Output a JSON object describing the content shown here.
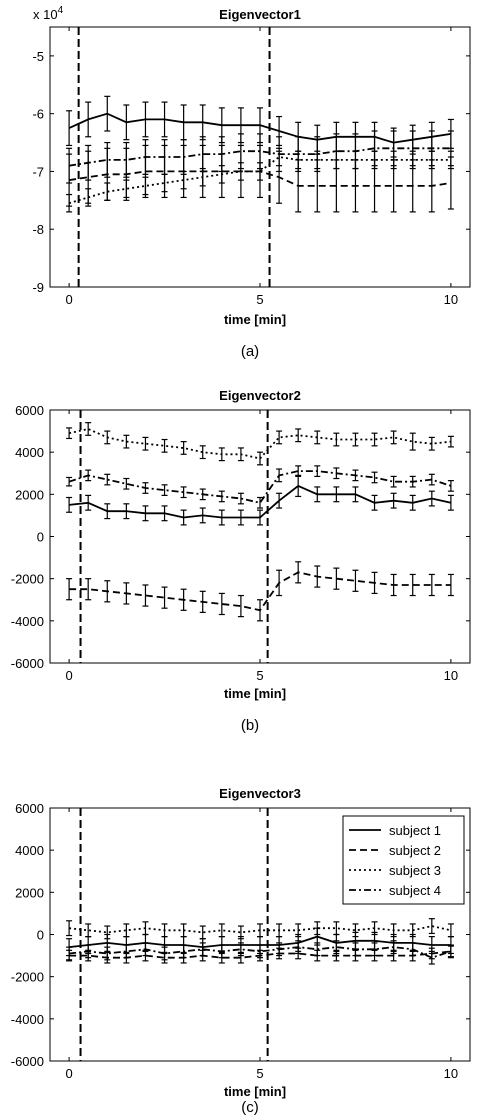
{
  "chart_data": [
    {
      "type": "line",
      "title": "Eigenvector1",
      "xlabel": "time [min]",
      "caption": "(a)",
      "exponent_label": "x 10",
      "exponent_power": "4",
      "xlim": [
        -0.5,
        10.5
      ],
      "ylim": [
        -9,
        -4.5
      ],
      "xticks": [
        0,
        5,
        10
      ],
      "yticks": [
        -9,
        -8,
        -7,
        -6,
        -5
      ],
      "vlines": [
        0.25,
        5.25
      ],
      "x": [
        0,
        0.5,
        1,
        1.5,
        2,
        2.5,
        3,
        3.5,
        4,
        4.5,
        5,
        5.5,
        6,
        6.5,
        7,
        7.5,
        8,
        8.5,
        9,
        9.5,
        10
      ],
      "series": [
        {
          "name": "subject 1",
          "style": "solid",
          "values": [
            -6.25,
            -6.1,
            -6.0,
            -6.15,
            -6.1,
            -6.1,
            -6.15,
            -6.15,
            -6.2,
            -6.2,
            -6.2,
            -6.3,
            -6.4,
            -6.45,
            -6.4,
            -6.4,
            -6.4,
            -6.5,
            -6.45,
            -6.4,
            -6.35
          ],
          "err": [
            0.3,
            0.3,
            0.3,
            0.3,
            0.3,
            0.3,
            0.3,
            0.3,
            0.3,
            0.3,
            0.3,
            0.25,
            0.25,
            0.25,
            0.25,
            0.25,
            0.25,
            0.25,
            0.25,
            0.25,
            0.25
          ]
        },
        {
          "name": "subject 2",
          "style": "dashed",
          "values": [
            -7.15,
            -7.1,
            -7.05,
            -7.05,
            -7.0,
            -7.0,
            -7.0,
            -7.0,
            -7.0,
            -7.0,
            -7.0,
            -7.1,
            -7.25,
            -7.25,
            -7.25,
            -7.25,
            -7.25,
            -7.25,
            -7.25,
            -7.25,
            -7.2
          ],
          "err": [
            0.45,
            0.45,
            0.45,
            0.45,
            0.45,
            0.45,
            0.45,
            0.45,
            0.45,
            0.45,
            0.45,
            0.45,
            0.45,
            0.45,
            0.45,
            0.45,
            0.45,
            0.45,
            0.45,
            0.45,
            0.45
          ]
        },
        {
          "name": "subject 3",
          "style": "dotted",
          "values": [
            -7.55,
            -7.45,
            -7.35,
            -7.3,
            -7.25,
            -7.2,
            -7.15,
            -7.1,
            -7.05,
            -7.0,
            -7.0,
            -6.75,
            -6.8,
            -6.8,
            -6.8,
            -6.8,
            -6.8,
            -6.8,
            -6.8,
            -6.8,
            -6.8
          ],
          "err": [
            0.15,
            0.15,
            0.15,
            0.15,
            0.15,
            0.15,
            0.15,
            0.15,
            0.15,
            0.15,
            0.15,
            0.15,
            0.15,
            0.15,
            0.15,
            0.15,
            0.15,
            0.15,
            0.15,
            0.15,
            0.15
          ]
        },
        {
          "name": "subject 4",
          "style": "dashdot",
          "values": [
            -6.9,
            -6.85,
            -6.8,
            -6.8,
            -6.75,
            -6.75,
            -6.75,
            -6.7,
            -6.7,
            -6.65,
            -6.65,
            -6.7,
            -6.7,
            -6.7,
            -6.65,
            -6.65,
            -6.6,
            -6.6,
            -6.6,
            -6.6,
            -6.6
          ],
          "err": [
            0.3,
            0.3,
            0.3,
            0.3,
            0.3,
            0.3,
            0.3,
            0.3,
            0.3,
            0.3,
            0.3,
            0.3,
            0.3,
            0.3,
            0.3,
            0.3,
            0.3,
            0.3,
            0.3,
            0.3,
            0.3
          ]
        }
      ]
    },
    {
      "type": "line",
      "title": "Eigenvector2",
      "xlabel": "time [min]",
      "caption": "(b)",
      "xlim": [
        -0.5,
        10.5
      ],
      "ylim": [
        -6000,
        6000
      ],
      "xticks": [
        0,
        5,
        10
      ],
      "yticks": [
        -6000,
        -4000,
        -2000,
        0,
        2000,
        4000,
        6000
      ],
      "vlines": [
        0.3,
        5.2
      ],
      "x": [
        0,
        0.5,
        1,
        1.5,
        2,
        2.5,
        3,
        3.5,
        4,
        4.5,
        5,
        5.5,
        6,
        6.5,
        7,
        7.5,
        8,
        8.5,
        9,
        9.5,
        10
      ],
      "series": [
        {
          "name": "subject 1",
          "style": "solid",
          "values": [
            1500,
            1600,
            1200,
            1200,
            1100,
            1100,
            900,
            1000,
            900,
            900,
            900,
            1700,
            2400,
            2000,
            2000,
            2000,
            1600,
            1700,
            1600,
            1800,
            1600
          ],
          "err": [
            350,
            350,
            350,
            350,
            350,
            350,
            350,
            350,
            350,
            350,
            350,
            350,
            500,
            350,
            350,
            350,
            350,
            350,
            350,
            350,
            350
          ]
        },
        {
          "name": "subject 2",
          "style": "dashed",
          "values": [
            -2500,
            -2500,
            -2600,
            -2700,
            -2800,
            -2900,
            -3000,
            -3100,
            -3200,
            -3300,
            -3500,
            -2200,
            -1700,
            -1900,
            -2000,
            -2100,
            -2200,
            -2300,
            -2300,
            -2300,
            -2300
          ],
          "err": [
            500,
            500,
            500,
            500,
            500,
            500,
            500,
            500,
            500,
            500,
            500,
            600,
            500,
            500,
            500,
            500,
            500,
            500,
            500,
            500,
            500
          ]
        },
        {
          "name": "subject 3",
          "style": "dotted",
          "values": [
            4900,
            5100,
            4700,
            4500,
            4400,
            4300,
            4200,
            4000,
            3900,
            3900,
            3700,
            4700,
            4800,
            4700,
            4600,
            4600,
            4600,
            4700,
            4500,
            4400,
            4500
          ],
          "err": [
            250,
            300,
            300,
            300,
            300,
            300,
            300,
            300,
            300,
            300,
            300,
            300,
            300,
            300,
            300,
            300,
            300,
            300,
            400,
            300,
            250
          ]
        },
        {
          "name": "subject 4",
          "style": "dashdot",
          "values": [
            2600,
            2900,
            2700,
            2500,
            2300,
            2200,
            2100,
            2000,
            1900,
            1800,
            1600,
            2900,
            3100,
            3100,
            3000,
            2900,
            2800,
            2600,
            2600,
            2700,
            2400
          ],
          "err": [
            200,
            250,
            250,
            250,
            250,
            250,
            250,
            250,
            250,
            250,
            250,
            300,
            250,
            250,
            250,
            250,
            250,
            250,
            250,
            250,
            250
          ]
        }
      ]
    },
    {
      "type": "line",
      "title": "Eigenvector3",
      "xlabel": "time [min]",
      "caption": "(c)",
      "xlim": [
        -0.5,
        10.5
      ],
      "ylim": [
        -6000,
        6000
      ],
      "xticks": [
        0,
        5,
        10
      ],
      "yticks": [
        -6000,
        -4000,
        -2000,
        0,
        2000,
        4000,
        6000
      ],
      "vlines": [
        0.3,
        5.2
      ],
      "legend_position": "top-right",
      "x": [
        0,
        0.5,
        1,
        1.5,
        2,
        2.5,
        3,
        3.5,
        4,
        4.5,
        5,
        5.5,
        6,
        6.5,
        7,
        7.5,
        8,
        8.5,
        9,
        9.5,
        10
      ],
      "series": [
        {
          "name": "subject 1",
          "style": "solid",
          "values": [
            -600,
            -500,
            -400,
            -500,
            -400,
            -500,
            -500,
            -600,
            -500,
            -500,
            -500,
            -500,
            -400,
            -100,
            -400,
            -300,
            -300,
            -400,
            -400,
            -500,
            -500
          ],
          "err": [
            400,
            400,
            400,
            400,
            400,
            400,
            400,
            400,
            400,
            400,
            400,
            400,
            400,
            400,
            400,
            400,
            400,
            400,
            400,
            400,
            400
          ]
        },
        {
          "name": "subject 2",
          "style": "dashed",
          "values": [
            -1000,
            -1000,
            -1100,
            -1100,
            -1000,
            -1100,
            -1100,
            -1000,
            -1100,
            -1100,
            -1000,
            -900,
            -900,
            -1000,
            -1000,
            -1000,
            -1000,
            -1000,
            -1000,
            -900,
            -800
          ],
          "err": [
            250,
            250,
            250,
            250,
            250,
            250,
            250,
            250,
            250,
            250,
            250,
            250,
            250,
            250,
            250,
            250,
            250,
            250,
            250,
            250,
            250
          ]
        },
        {
          "name": "subject 3",
          "style": "dotted",
          "values": [
            300,
            200,
            100,
            200,
            300,
            200,
            200,
            100,
            200,
            100,
            200,
            200,
            200,
            300,
            300,
            200,
            300,
            200,
            200,
            400,
            200
          ],
          "err": [
            350,
            300,
            300,
            300,
            300,
            300,
            300,
            300,
            300,
            300,
            300,
            300,
            300,
            300,
            300,
            300,
            300,
            300,
            300,
            350,
            300
          ]
        },
        {
          "name": "subject 4",
          "style": "dashdot",
          "values": [
            -900,
            -800,
            -900,
            -800,
            -700,
            -900,
            -800,
            -700,
            -800,
            -700,
            -800,
            -700,
            -600,
            -700,
            -600,
            -700,
            -700,
            -600,
            -700,
            -1100,
            -800
          ],
          "err": [
            300,
            300,
            300,
            300,
            300,
            300,
            300,
            300,
            300,
            300,
            300,
            300,
            300,
            300,
            300,
            300,
            300,
            300,
            300,
            300,
            300
          ]
        }
      ]
    }
  ]
}
